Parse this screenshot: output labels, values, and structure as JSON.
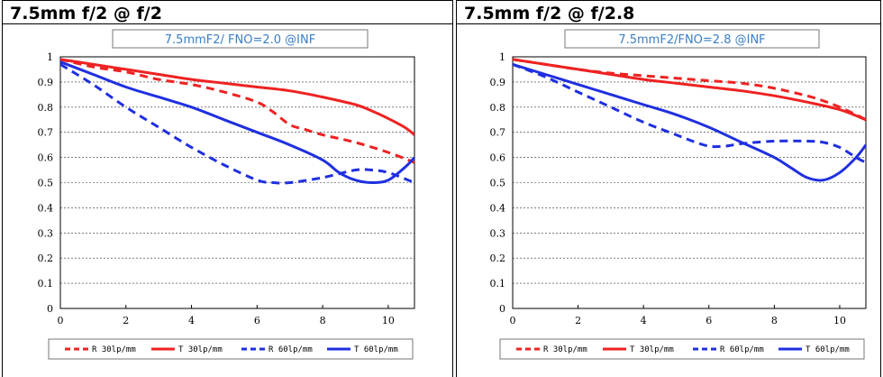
{
  "panels": [
    {
      "title": "7.5mm f/2 @ f/2"
    },
    {
      "title": "7.5mm f/2 @ f/2.8"
    }
  ],
  "chart_data": [
    {
      "type": "line",
      "title": "7.5mmF2/ FNO=2.0  @INF",
      "xlabel": "",
      "ylabel": "",
      "xlim": [
        0,
        10.8
      ],
      "ylim": [
        0,
        1
      ],
      "x_ticks": [
        "0",
        "2",
        "4",
        "6",
        "8",
        "10"
      ],
      "y_ticks": [
        "0",
        "0.1",
        "0.2",
        "0.3",
        "0.4",
        "0.5",
        "0.6",
        "0.7",
        "0.8",
        "0.9",
        "1"
      ],
      "grid": "horizontal dotted",
      "legend_position": "bottom",
      "series": [
        {
          "name": "R 30lp/mm",
          "color": "#ee2222",
          "dash": true,
          "x": [
            0,
            1,
            2,
            3,
            4,
            5,
            6,
            6.5,
            7,
            7.5,
            8,
            9,
            10,
            10.8
          ],
          "y": [
            0.99,
            0.96,
            0.94,
            0.91,
            0.89,
            0.86,
            0.82,
            0.78,
            0.73,
            0.71,
            0.69,
            0.66,
            0.62,
            0.58
          ]
        },
        {
          "name": "T 30lp/mm",
          "color": "#ee2222",
          "dash": false,
          "x": [
            0,
            1,
            2,
            3,
            4,
            5,
            6,
            7,
            8,
            9,
            9.5,
            10,
            10.5,
            10.8
          ],
          "y": [
            0.99,
            0.97,
            0.95,
            0.93,
            0.91,
            0.895,
            0.88,
            0.865,
            0.84,
            0.81,
            0.785,
            0.755,
            0.72,
            0.69
          ]
        },
        {
          "name": "R 60lp/mm",
          "color": "#1f2fe0",
          "dash": true,
          "x": [
            0,
            1,
            2,
            3,
            4,
            5,
            6,
            6.5,
            7,
            8,
            9,
            9.5,
            10,
            10.8
          ],
          "y": [
            0.97,
            0.89,
            0.8,
            0.72,
            0.64,
            0.57,
            0.51,
            0.5,
            0.5,
            0.52,
            0.55,
            0.55,
            0.54,
            0.5
          ]
        },
        {
          "name": "T 60lp/mm",
          "color": "#1f2fe0",
          "dash": false,
          "x": [
            0,
            1,
            2,
            3,
            4,
            5,
            6,
            7,
            8,
            8.5,
            9,
            9.5,
            10,
            10.5,
            10.8
          ],
          "y": [
            0.98,
            0.93,
            0.88,
            0.84,
            0.8,
            0.75,
            0.7,
            0.65,
            0.59,
            0.54,
            0.51,
            0.5,
            0.51,
            0.56,
            0.6
          ]
        }
      ]
    },
    {
      "type": "line",
      "title": "7.5mmF2/FNO=2.8  @INF",
      "xlabel": "",
      "ylabel": "",
      "xlim": [
        0,
        10.8
      ],
      "ylim": [
        0,
        1
      ],
      "x_ticks": [
        "0",
        "2",
        "4",
        "6",
        "8",
        "10"
      ],
      "y_ticks": [
        "0",
        "0.1",
        "0.2",
        "0.3",
        "0.4",
        "0.5",
        "0.6",
        "0.7",
        "0.8",
        "0.9",
        "1"
      ],
      "grid": "horizontal dotted",
      "legend_position": "bottom",
      "series": [
        {
          "name": "R 30lp/mm",
          "color": "#ee2222",
          "dash": true,
          "x": [
            0,
            1,
            2,
            3,
            4,
            5,
            6,
            7,
            8,
            9,
            9.5,
            10,
            10.5,
            10.8
          ],
          "y": [
            0.99,
            0.97,
            0.95,
            0.935,
            0.925,
            0.915,
            0.905,
            0.895,
            0.875,
            0.845,
            0.825,
            0.8,
            0.77,
            0.75
          ]
        },
        {
          "name": "T 30lp/mm",
          "color": "#ee2222",
          "dash": false,
          "x": [
            0,
            1,
            2,
            3,
            4,
            5,
            6,
            7,
            8,
            9,
            10,
            10.8
          ],
          "y": [
            0.99,
            0.97,
            0.95,
            0.93,
            0.91,
            0.895,
            0.88,
            0.865,
            0.845,
            0.82,
            0.79,
            0.75
          ]
        },
        {
          "name": "R 60lp/mm",
          "color": "#1f2fe0",
          "dash": true,
          "x": [
            0,
            1,
            2,
            3,
            4,
            5,
            5.5,
            6,
            6.5,
            7,
            8,
            9,
            9.5,
            10,
            10.5,
            10.8
          ],
          "y": [
            0.97,
            0.92,
            0.86,
            0.8,
            0.74,
            0.69,
            0.665,
            0.645,
            0.645,
            0.655,
            0.665,
            0.665,
            0.66,
            0.64,
            0.6,
            0.58
          ]
        },
        {
          "name": "T 60lp/mm",
          "color": "#1f2fe0",
          "dash": false,
          "x": [
            0,
            1,
            2,
            3,
            4,
            5,
            6,
            7,
            8,
            8.5,
            9,
            9.5,
            10,
            10.5,
            10.8
          ],
          "y": [
            0.97,
            0.93,
            0.89,
            0.85,
            0.81,
            0.77,
            0.72,
            0.66,
            0.6,
            0.56,
            0.52,
            0.51,
            0.54,
            0.6,
            0.65
          ]
        }
      ]
    }
  ]
}
